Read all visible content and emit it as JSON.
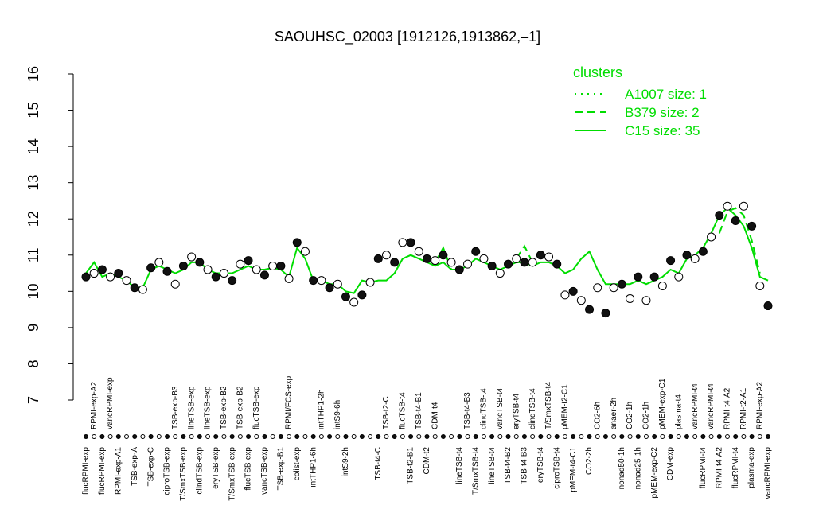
{
  "chart_data": {
    "type": "line",
    "title": "SAOUHSC_02003 [1912126,1913862,–1]",
    "ylim": [
      7,
      16
    ],
    "yticks": [
      7,
      8,
      9,
      10,
      11,
      12,
      13,
      14,
      15,
      16
    ],
    "legend_title": "clusters",
    "legend_position": "top-right",
    "categories": [
      "flucRPMI-exp",
      "RPMI-exp-A2",
      "flucRPMI-exp",
      "vancRPMI-exp",
      "RPMI-exp-A1",
      null,
      "TSB-exp-A",
      null,
      "TSB-exp-C",
      null,
      "ciproTSB-exp",
      "TSB-exp-B3",
      "T/SmxTSB-exp",
      "lineTSB-exp",
      "clindTSB-exp",
      "lineTSB-exp",
      "eryTSB-exp",
      "TSB-exp-B2",
      "T/SmxTSB-exp",
      "TSB-exp-B2",
      "flucTSB-exp",
      "flucTSB-exp",
      "vancTSB-exp",
      null,
      "TSB-exp-B1",
      "RPMI/FCS-exp",
      "colist-exp",
      null,
      "intTHP1-6h",
      "intTHP1-2h",
      null,
      "intS9-6h",
      "intS9-2h",
      null,
      null,
      null,
      "TSB-t4-C",
      "TSB-t2-C",
      null,
      "flucTSB-t4",
      "TSB-t2-B1",
      "TSB-t4-B1",
      "CDM-t2",
      "CDM-t4",
      null,
      null,
      "lineTSB-t4",
      "TSB-t4-B3",
      "T/SmxTSB-t4",
      "clindTSB-t4",
      "lineTSB-t4",
      "vancTSB-t4",
      "TSB-t4-B2",
      "eryTSB-t4",
      "TSB-t4-B3",
      "clindTSB-t4",
      "eryTSB-t4",
      "T/SmxTSB-t4",
      "ciproTSB-t4",
      "pMEM-t2-C1",
      "pMEM-t4-C1",
      null,
      "CO2-2h",
      "CO2-6h",
      null,
      "anaer-2h",
      "nonad50-1h",
      "CO2-1h",
      "nonad25-1h",
      "CO2-1h",
      "pMEM-exp-C2",
      "pMEM-exp-C1",
      "CDM-exp",
      "plasma-t4",
      null,
      "vancRPMI-t4",
      "flucRPMI-t4",
      "vancRPMI-t4",
      "RPMI-t4-A2",
      "RPMI-t4-A2",
      "flucRPMI-t4",
      "RPMI-t2-A1",
      "plasma-exp",
      "RPMI-exp-A2",
      "vancRPMI-exp"
    ],
    "values": [
      10.4,
      10.5,
      10.6,
      10.4,
      10.5,
      10.3,
      10.1,
      10.05,
      10.65,
      10.8,
      10.55,
      10.2,
      10.7,
      10.95,
      10.8,
      10.6,
      10.4,
      10.5,
      10.3,
      10.75,
      10.85,
      10.6,
      10.45,
      10.7,
      10.7,
      10.35,
      11.35,
      11.1,
      10.3,
      10.3,
      10.1,
      10.2,
      9.85,
      9.7,
      9.9,
      10.25,
      10.9,
      11.0,
      10.8,
      11.35,
      11.35,
      11.1,
      10.9,
      10.85,
      11.0,
      10.8,
      10.6,
      10.75,
      11.1,
      10.9,
      10.7,
      10.5,
      10.75,
      10.9,
      10.8,
      10.8,
      11.0,
      10.95,
      10.75,
      9.9,
      10.0,
      9.75,
      9.5,
      10.1,
      9.4,
      10.1,
      10.2,
      9.8,
      10.4,
      9.75,
      10.4,
      10.15,
      10.85,
      10.4,
      11.0,
      10.9,
      11.1,
      11.5,
      12.1,
      12.35,
      11.95,
      12.35,
      11.8,
      10.15,
      9.6
    ],
    "series": [
      {
        "name": "A1007 size: 1",
        "color": "#00dd00",
        "dash": "dotted",
        "values": [
          null,
          null,
          null,
          null,
          null,
          null,
          null,
          null,
          null,
          null,
          null,
          null,
          null,
          null,
          null,
          null,
          null,
          null,
          null,
          null,
          null,
          null,
          null,
          null,
          null,
          null,
          null,
          null,
          null,
          null,
          null,
          null,
          null,
          null,
          null,
          null,
          null,
          null,
          null,
          null,
          null,
          null,
          null,
          null,
          null,
          null,
          null,
          null,
          null,
          null,
          null,
          null,
          null,
          null,
          null,
          null,
          null,
          null,
          null,
          null,
          null,
          null,
          null,
          null,
          null,
          null,
          null,
          null,
          null,
          null,
          null,
          null,
          null,
          null,
          null,
          null,
          null,
          null,
          null,
          null,
          null,
          null,
          null,
          null,
          null
        ]
      },
      {
        "name": "B379 size: 2",
        "color": "#00dd00",
        "dash": "dashed",
        "values": [
          null,
          null,
          null,
          null,
          null,
          null,
          null,
          null,
          null,
          null,
          null,
          null,
          null,
          null,
          null,
          null,
          null,
          null,
          null,
          null,
          null,
          null,
          null,
          null,
          null,
          null,
          null,
          null,
          null,
          null,
          null,
          null,
          null,
          null,
          null,
          null,
          null,
          null,
          null,
          null,
          null,
          null,
          null,
          10.8,
          11.2,
          10.6,
          null,
          null,
          null,
          null,
          null,
          null,
          null,
          10.9,
          11.25,
          10.8,
          null,
          null,
          null,
          null,
          null,
          null,
          null,
          null,
          null,
          null,
          null,
          null,
          null,
          null,
          null,
          null,
          null,
          null,
          null,
          null,
          null,
          null,
          11.6,
          12.2,
          12.3,
          12.1,
          11.4,
          10.5,
          null
        ]
      },
      {
        "name": "C15 size: 35",
        "color": "#00dd00",
        "dash": "solid",
        "values": [
          10.5,
          10.8,
          10.4,
          10.5,
          10.4,
          10.3,
          10.1,
          10.1,
          10.6,
          10.7,
          10.6,
          10.5,
          10.6,
          10.8,
          10.8,
          10.6,
          10.5,
          10.5,
          10.5,
          10.6,
          10.7,
          10.6,
          10.6,
          10.65,
          10.6,
          10.4,
          11.2,
          10.9,
          10.3,
          10.3,
          10.2,
          10.2,
          10.0,
          9.95,
          10.3,
          10.25,
          10.3,
          10.3,
          10.5,
          10.9,
          11.0,
          10.9,
          10.8,
          10.7,
          10.8,
          10.6,
          10.6,
          10.7,
          10.9,
          10.8,
          10.7,
          10.6,
          10.7,
          10.8,
          10.8,
          10.7,
          10.8,
          10.8,
          10.7,
          10.5,
          10.6,
          10.9,
          11.1,
          10.6,
          10.2,
          10.2,
          10.2,
          10.2,
          10.3,
          10.2,
          10.3,
          10.4,
          10.6,
          10.5,
          10.9,
          11.0,
          11.2,
          11.6,
          12.1,
          12.3,
          12.1,
          11.8,
          11.2,
          10.4,
          10.3
        ]
      }
    ]
  }
}
